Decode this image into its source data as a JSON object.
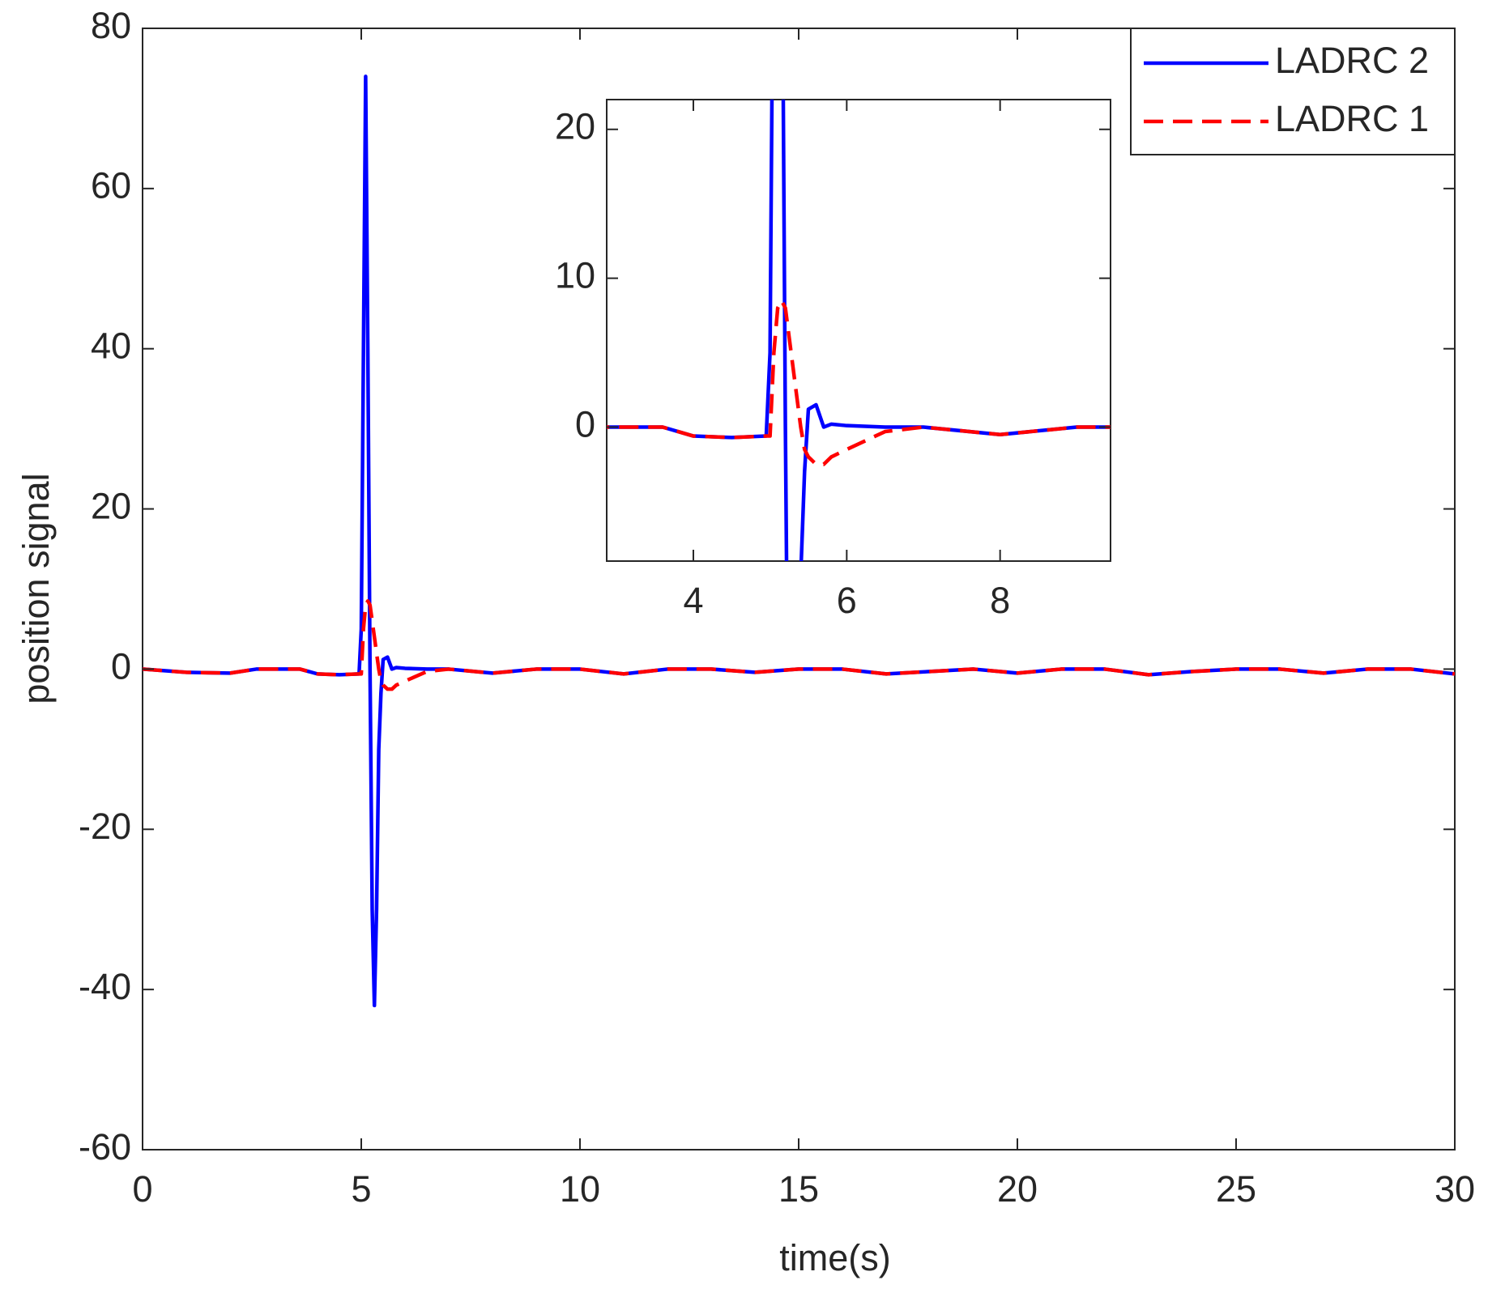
{
  "chart_data": [
    {
      "type": "line",
      "x_label": "time(s)",
      "y_label": "position signal",
      "x": [
        0,
        1,
        2,
        2.6,
        3.6,
        4,
        4.5,
        4.95,
        5.0,
        5.05,
        5.1,
        5.15,
        5.2,
        5.25,
        5.3,
        5.35,
        5.4,
        5.45,
        5.5,
        5.6,
        5.7,
        5.8,
        6,
        6.5,
        7,
        8,
        9,
        10,
        11,
        12,
        13,
        14,
        15,
        16,
        17,
        18,
        19,
        20,
        21,
        22,
        23,
        24,
        25,
        26,
        27,
        28,
        29,
        30
      ],
      "series": [
        {
          "name": "LADRC 2",
          "color": "#0000ff",
          "style": "solid",
          "values": [
            0,
            -0.4,
            -0.5,
            0,
            0,
            -0.6,
            -0.7,
            -0.6,
            5,
            40,
            74,
            40,
            0,
            -30,
            -42,
            -30,
            -10,
            -3,
            1.2,
            1.5,
            0,
            0.2,
            0.1,
            0,
            0,
            -0.5,
            0,
            0,
            -0.6,
            0,
            0,
            -0.4,
            0,
            0,
            -0.6,
            -0.3,
            0,
            -0.5,
            0,
            0,
            -0.7,
            -0.3,
            0,
            0,
            -0.5,
            0,
            0,
            -0.6
          ]
        },
        {
          "name": "LADRC 1",
          "color": "#ff0000",
          "style": "dashed",
          "values": [
            0,
            -0.4,
            -0.5,
            0,
            0,
            -0.6,
            -0.7,
            -0.6,
            -0.6,
            5,
            8,
            8.5,
            8,
            6,
            4,
            2,
            0,
            -1.5,
            -2,
            -2.5,
            -2.5,
            -2,
            -1.5,
            -0.3,
            0,
            -0.5,
            0,
            0,
            -0.6,
            0,
            0,
            -0.4,
            0,
            0,
            -0.6,
            -0.3,
            0,
            -0.5,
            0,
            0,
            -0.7,
            -0.3,
            0,
            0,
            -0.5,
            0,
            0,
            -0.6
          ]
        }
      ],
      "xlim": [
        0,
        30
      ],
      "xticks": [
        0,
        5,
        10,
        15,
        20,
        25,
        30
      ],
      "ylim": [
        -60,
        80
      ],
      "yticks": [
        -60,
        -40,
        -20,
        0,
        20,
        40,
        60,
        80
      ],
      "grid": false,
      "legend": "northeast"
    },
    {
      "type": "inset",
      "xlim": [
        2.87,
        9.44
      ],
      "xticks": [
        4,
        6,
        8
      ],
      "ylim": [
        -9,
        22
      ],
      "yticks": [
        0,
        10,
        20
      ]
    }
  ]
}
